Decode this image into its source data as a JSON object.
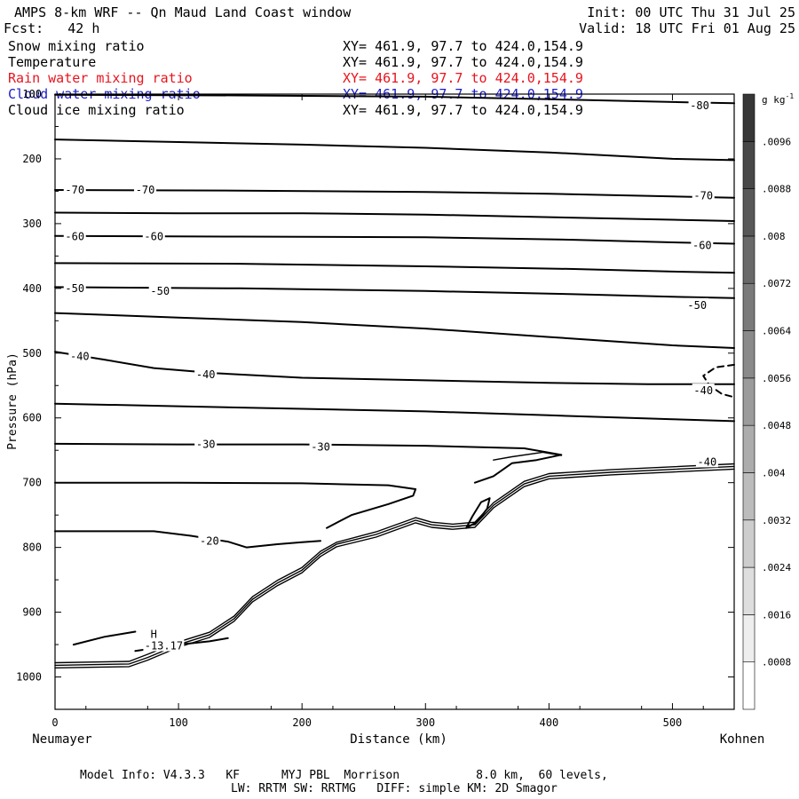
{
  "header": {
    "title": "AMPS 8-km WRF -- Qn Maud Land Coast window",
    "forecast": "Fcst:   42 h",
    "init": "Init: 00 UTC Thu 31 Jul 25",
    "valid": "Valid: 18 UTC Fri 01 Aug 25"
  },
  "fields": [
    {
      "name": "Snow mixing ratio",
      "xy": "XY= 461.9, 97.7 to 424.0,154.9",
      "color": "#000000"
    },
    {
      "name": "Temperature",
      "xy": "XY= 461.9, 97.7 to 424.0,154.9",
      "color": "#000000"
    },
    {
      "name": "Rain water mixing ratio",
      "xy": "XY= 461.9, 97.7 to 424.0,154.9",
      "color": "#e8141e"
    },
    {
      "name": "Cloud water mixing ratio",
      "xy": "XY= 461.9, 97.7 to 424.0,154.9",
      "color": "#1b1bc8"
    },
    {
      "name": "Cloud ice mixing ratio",
      "xy": "XY= 461.9, 97.7 to 424.0,154.9",
      "color": "#000000"
    }
  ],
  "footer": {
    "line1": "Model Info: V4.3.3   KF      MYJ PBL  Morrison           8.0 km,  60 levels,",
    "line2": "LW: RRTM SW: RRTMG   DIFF: simple KM: 2D Smagor"
  },
  "chart_data": {
    "type": "line",
    "title": "AMPS 8-km WRF -- Qn Maud Land Coast window",
    "xlabel": "Distance (km)",
    "ylabel": "Pressure (hPa)",
    "xlim": [
      0,
      550
    ],
    "ylim": [
      100,
      1050
    ],
    "y_inverted": true,
    "x_ticks": [
      0,
      100,
      200,
      300,
      400,
      500
    ],
    "y_ticks": [
      100,
      200,
      300,
      400,
      500,
      600,
      700,
      800,
      900,
      1000
    ],
    "x_end_labels": {
      "left": "Neumayer",
      "right": "Kohnen"
    },
    "colorbar": {
      "unit_label": "g kg",
      "unit_exponent": "-1",
      "ticks": [
        ".0008",
        ".0016",
        ".0024",
        ".0032",
        ".004",
        ".0048",
        ".0056",
        ".0064",
        ".0072",
        ".008",
        ".0088",
        ".0096"
      ]
    },
    "series": [
      {
        "kind": "isotherm",
        "points": [
          [
            0,
            101
          ],
          [
            150,
            102
          ],
          [
            300,
            104
          ],
          [
            400,
            108
          ],
          [
            520,
            113
          ],
          [
            550,
            114
          ]
        ]
      },
      {
        "kind": "isotherm",
        "points": [
          [
            0,
            170
          ],
          [
            100,
            174
          ],
          [
            200,
            178
          ],
          [
            300,
            183
          ],
          [
            400,
            190
          ],
          [
            500,
            200
          ],
          [
            550,
            202
          ]
        ]
      },
      {
        "kind": "isotherm",
        "points": [
          [
            0,
            248
          ],
          [
            150,
            249
          ],
          [
            300,
            251
          ],
          [
            400,
            254
          ],
          [
            500,
            258
          ],
          [
            550,
            260
          ]
        ]
      },
      {
        "kind": "isotherm",
        "points": [
          [
            0,
            283
          ],
          [
            100,
            284
          ],
          [
            200,
            284
          ],
          [
            300,
            286
          ],
          [
            400,
            290
          ],
          [
            500,
            294
          ],
          [
            550,
            296
          ]
        ]
      },
      {
        "kind": "isotherm",
        "points": [
          [
            0,
            319
          ],
          [
            150,
            320
          ],
          [
            300,
            321
          ],
          [
            420,
            325
          ],
          [
            500,
            329
          ],
          [
            550,
            331
          ]
        ]
      },
      {
        "kind": "isotherm",
        "points": [
          [
            0,
            361
          ],
          [
            150,
            362
          ],
          [
            300,
            366
          ],
          [
            420,
            370
          ],
          [
            500,
            374
          ],
          [
            550,
            376
          ]
        ]
      },
      {
        "kind": "isotherm",
        "points": [
          [
            0,
            398
          ],
          [
            150,
            400
          ],
          [
            300,
            404
          ],
          [
            420,
            409
          ],
          [
            500,
            413
          ],
          [
            550,
            415
          ]
        ]
      },
      {
        "kind": "isotherm",
        "points": [
          [
            0,
            438
          ],
          [
            100,
            445
          ],
          [
            200,
            452
          ],
          [
            300,
            462
          ],
          [
            400,
            475
          ],
          [
            500,
            488
          ],
          [
            550,
            492
          ]
        ]
      },
      {
        "kind": "isotherm",
        "points": [
          [
            0,
            498
          ],
          [
            40,
            510
          ],
          [
            80,
            523
          ],
          [
            130,
            531
          ],
          [
            200,
            538
          ],
          [
            300,
            542
          ],
          [
            400,
            546
          ],
          [
            480,
            548
          ],
          [
            550,
            548
          ]
        ]
      },
      {
        "kind": "isotherm",
        "points": [
          [
            0,
            578
          ],
          [
            100,
            582
          ],
          [
            200,
            586
          ],
          [
            300,
            590
          ],
          [
            400,
            596
          ],
          [
            500,
            602
          ],
          [
            550,
            605
          ]
        ]
      },
      {
        "kind": "isotherm",
        "points": [
          [
            0,
            640
          ],
          [
            100,
            641
          ],
          [
            200,
            641
          ],
          [
            300,
            643
          ],
          [
            380,
            647
          ],
          [
            410,
            657
          ],
          [
            390,
            665
          ],
          [
            370,
            670
          ],
          [
            355,
            690
          ],
          [
            340,
            700
          ]
        ]
      },
      {
        "kind": "isotherm",
        "points": [
          [
            0,
            700
          ],
          [
            100,
            700
          ],
          [
            200,
            701
          ],
          [
            270,
            704
          ],
          [
            292,
            710
          ],
          [
            290,
            720
          ],
          [
            270,
            733
          ],
          [
            240,
            750
          ],
          [
            220,
            770
          ]
        ]
      },
      {
        "kind": "isotherm",
        "points": [
          [
            0,
            775
          ],
          [
            80,
            775
          ],
          [
            110,
            782
          ],
          [
            140,
            791
          ],
          [
            155,
            800
          ],
          [
            180,
            795
          ],
          [
            200,
            792
          ],
          [
            215,
            790
          ]
        ]
      },
      {
        "kind": "isotherm",
        "points": [
          [
            15,
            950
          ],
          [
            40,
            938
          ],
          [
            65,
            930
          ]
        ]
      },
      {
        "kind": "isotherm",
        "points": [
          [
            65,
            960
          ],
          [
            100,
            950
          ],
          [
            125,
            945
          ],
          [
            140,
            940
          ]
        ]
      },
      {
        "kind": "terrain",
        "points": [
          [
            0,
            982
          ],
          [
            60,
            980
          ],
          [
            75,
            970
          ],
          [
            100,
            950
          ],
          [
            125,
            935
          ],
          [
            145,
            910
          ],
          [
            160,
            880
          ],
          [
            180,
            855
          ],
          [
            200,
            835
          ],
          [
            215,
            810
          ],
          [
            228,
            795
          ],
          [
            260,
            780
          ],
          [
            292,
            758
          ],
          [
            305,
            765
          ],
          [
            322,
            768
          ],
          [
            340,
            765
          ],
          [
            355,
            735
          ],
          [
            380,
            702
          ],
          [
            400,
            690
          ],
          [
            450,
            684
          ],
          [
            550,
            675
          ]
        ]
      },
      {
        "kind": "terrain",
        "points": [
          [
            0,
            978
          ],
          [
            60,
            976
          ],
          [
            75,
            965
          ],
          [
            100,
            946
          ],
          [
            125,
            931
          ],
          [
            145,
            906
          ],
          [
            160,
            876
          ],
          [
            180,
            851
          ],
          [
            200,
            831
          ],
          [
            215,
            806
          ],
          [
            228,
            792
          ],
          [
            260,
            776
          ],
          [
            292,
            754
          ],
          [
            305,
            761
          ],
          [
            322,
            764
          ],
          [
            340,
            761
          ],
          [
            355,
            731
          ],
          [
            380,
            698
          ],
          [
            400,
            686
          ],
          [
            450,
            680
          ],
          [
            550,
            671
          ]
        ]
      },
      {
        "kind": "terrain",
        "points": [
          [
            0,
            986
          ],
          [
            60,
            984
          ],
          [
            75,
            974
          ],
          [
            100,
            954
          ],
          [
            125,
            939
          ],
          [
            145,
            914
          ],
          [
            160,
            884
          ],
          [
            180,
            859
          ],
          [
            200,
            839
          ],
          [
            215,
            814
          ],
          [
            228,
            799
          ],
          [
            260,
            784
          ],
          [
            292,
            762
          ],
          [
            305,
            769
          ],
          [
            322,
            772
          ],
          [
            340,
            769
          ],
          [
            355,
            739
          ],
          [
            380,
            706
          ],
          [
            400,
            694
          ],
          [
            450,
            688
          ],
          [
            550,
            679
          ]
        ]
      },
      {
        "kind": "terrain",
        "points": [
          [
            355,
            665
          ],
          [
            370,
            660
          ],
          [
            395,
            653
          ],
          [
            410,
            658
          ]
        ]
      },
      {
        "kind": "closed",
        "points": [
          [
            333,
            770
          ],
          [
            338,
            752
          ],
          [
            345,
            730
          ],
          [
            352,
            724
          ],
          [
            350,
            740
          ],
          [
            342,
            760
          ],
          [
            333,
            770
          ]
        ]
      },
      {
        "kind": "dashed",
        "points": [
          [
            550,
            518
          ],
          [
            535,
            522
          ],
          [
            525,
            535
          ],
          [
            530,
            550
          ],
          [
            540,
            563
          ],
          [
            550,
            568
          ]
        ]
      }
    ],
    "contour_labels": [
      {
        "x": 16,
        "y": 248,
        "text": "-70"
      },
      {
        "x": 73,
        "y": 248,
        "text": "-70"
      },
      {
        "x": 525,
        "y": 257,
        "text": "-70"
      },
      {
        "x": 16,
        "y": 320,
        "text": "-60"
      },
      {
        "x": 80,
        "y": 320,
        "text": "-60"
      },
      {
        "x": 524,
        "y": 334,
        "text": "-60"
      },
      {
        "x": 16,
        "y": 400,
        "text": "-50"
      },
      {
        "x": 85,
        "y": 404,
        "text": "-50"
      },
      {
        "x": 520,
        "y": 426,
        "text": "-50"
      },
      {
        "x": 20,
        "y": 505,
        "text": "-40"
      },
      {
        "x": 122,
        "y": 533,
        "text": "-40"
      },
      {
        "x": 525,
        "y": 558,
        "text": "-40"
      },
      {
        "x": 122,
        "y": 641,
        "text": "-30"
      },
      {
        "x": 215,
        "y": 645,
        "text": "-30"
      },
      {
        "x": 125,
        "y": 790,
        "text": "-20"
      },
      {
        "x": 528,
        "y": 668,
        "text": "-40"
      },
      {
        "x": 522,
        "y": 118,
        "text": "-80"
      },
      {
        "x": 80,
        "y": 934,
        "text": "H"
      },
      {
        "x": 88,
        "y": 952,
        "text": "-13.17"
      }
    ]
  }
}
